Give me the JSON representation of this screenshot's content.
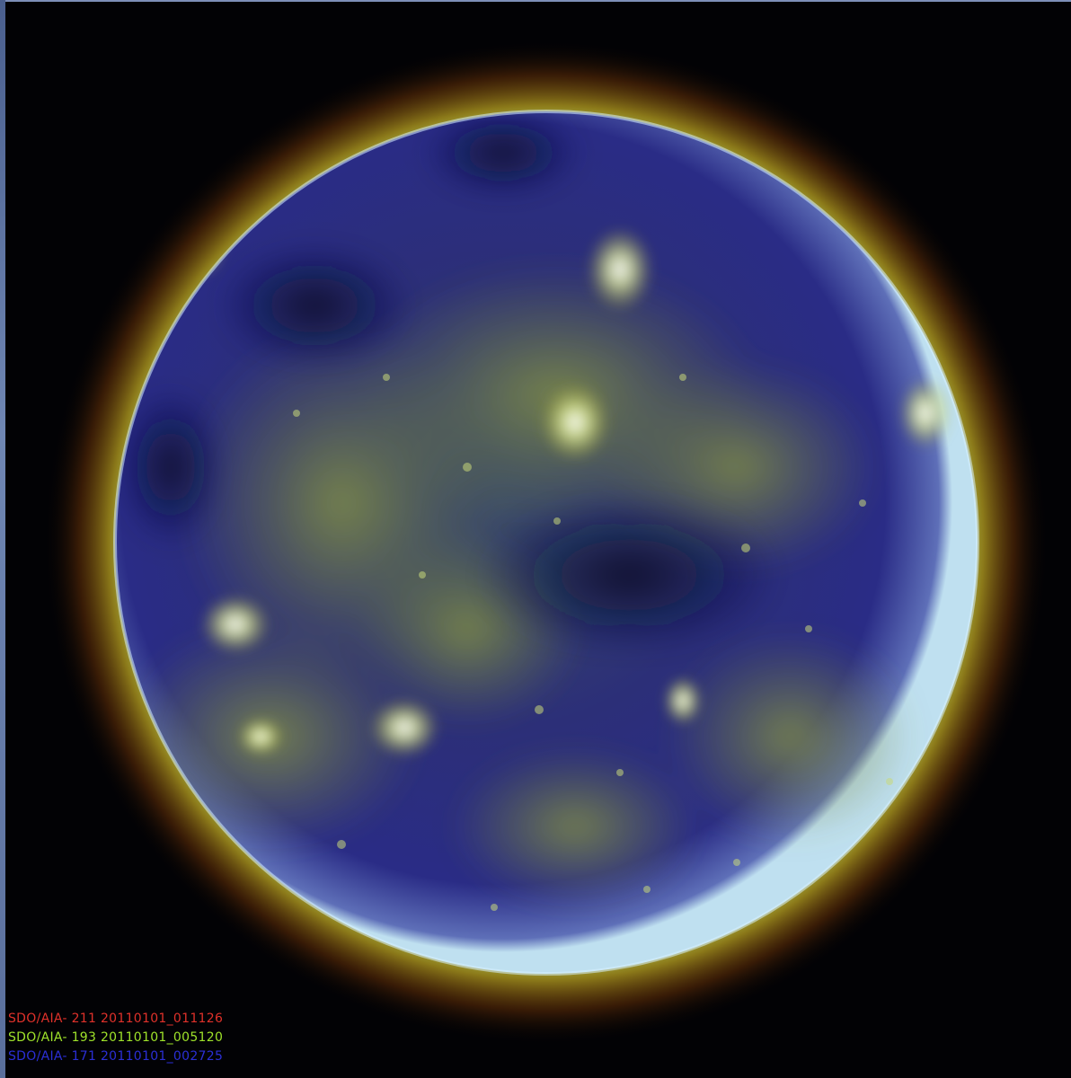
{
  "caption_lines": [
    {
      "text": "SDO/AIA- 211 20110101_011126",
      "color": "#e0312a"
    },
    {
      "text": "SDO/AIA- 193 20110101_005120",
      "color": "#9fe32a"
    },
    {
      "text": "SDO/AIA- 171 20110101_002725",
      "color": "#2b2fd6"
    }
  ],
  "colors": {
    "disk_blue": "#2a2a7a",
    "disk_green": "#6b7a3a",
    "limb_glow": "#c8f07a",
    "corona_outer": "#e0a020"
  }
}
